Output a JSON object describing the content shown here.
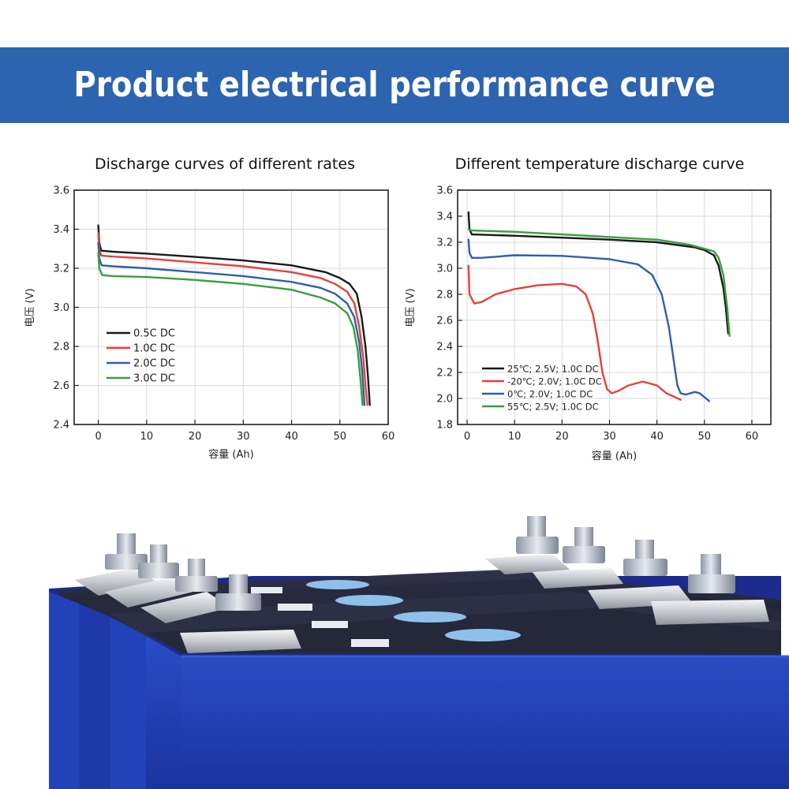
{
  "banner": {
    "title": "Product electrical performance curve"
  },
  "colors": {
    "banner": "#2d64b0",
    "black": "#1a1a1a",
    "red": "#e8403a",
    "blue": "#2f5fa8",
    "green": "#38a03c",
    "cell_blue": "#1f3fb0"
  },
  "chart_data": [
    {
      "type": "line",
      "title": "Discharge curves of different rates",
      "xlabel": "容量 (Ah)",
      "ylabel": "电压 (V)",
      "xlim": [
        -5,
        60
      ],
      "ylim": [
        2.4,
        3.6
      ],
      "xticks": [
        0,
        10,
        20,
        30,
        40,
        50,
        60
      ],
      "xtick_labels": [
        "0",
        "10",
        "20",
        "30",
        "40",
        "50",
        "60"
      ],
      "yticks": [
        2.4,
        2.6,
        2.8,
        3.0,
        3.2,
        3.4,
        3.6
      ],
      "ytick_labels": [
        "2.4",
        "2.6",
        "2.8",
        "3.0",
        "3.2",
        "3.4",
        "3.6"
      ],
      "grid": true,
      "legend": "lower-left",
      "series": [
        {
          "name": "0.5C DC",
          "color": "#1a1a1a",
          "points": [
            [
              0,
              3.42
            ],
            [
              0.2,
              3.33
            ],
            [
              0.6,
              3.29
            ],
            [
              3,
              3.285
            ],
            [
              10,
              3.275
            ],
            [
              20,
              3.258
            ],
            [
              30,
              3.24
            ],
            [
              40,
              3.215
            ],
            [
              47,
              3.18
            ],
            [
              50,
              3.15
            ],
            [
              52,
              3.12
            ],
            [
              53.5,
              3.07
            ],
            [
              54.5,
              2.95
            ],
            [
              55.3,
              2.8
            ],
            [
              55.8,
              2.65
            ],
            [
              56.2,
              2.5
            ]
          ]
        },
        {
          "name": "1.0C DC",
          "color": "#e8403a",
          "points": [
            [
              0,
              3.38
            ],
            [
              0.2,
              3.3
            ],
            [
              0.6,
              3.265
            ],
            [
              3,
              3.26
            ],
            [
              10,
              3.25
            ],
            [
              20,
              3.23
            ],
            [
              30,
              3.21
            ],
            [
              40,
              3.18
            ],
            [
              46,
              3.15
            ],
            [
              49,
              3.12
            ],
            [
              51.5,
              3.08
            ],
            [
              53,
              3.02
            ],
            [
              54,
              2.9
            ],
            [
              54.8,
              2.75
            ],
            [
              55.3,
              2.6
            ],
            [
              55.7,
              2.5
            ]
          ]
        },
        {
          "name": "2.0C DC",
          "color": "#2f5fa8",
          "points": [
            [
              0,
              3.33
            ],
            [
              0.2,
              3.25
            ],
            [
              0.7,
              3.215
            ],
            [
              3,
              3.21
            ],
            [
              10,
              3.2
            ],
            [
              20,
              3.18
            ],
            [
              30,
              3.16
            ],
            [
              40,
              3.13
            ],
            [
              46,
              3.1
            ],
            [
              49,
              3.07
            ],
            [
              51.5,
              3.02
            ],
            [
              53,
              2.95
            ],
            [
              54,
              2.82
            ],
            [
              54.6,
              2.68
            ],
            [
              55.1,
              2.5
            ]
          ]
        },
        {
          "name": "3.0C DC",
          "color": "#38a03c",
          "points": [
            [
              0,
              3.28
            ],
            [
              0.2,
              3.2
            ],
            [
              0.8,
              3.165
            ],
            [
              3,
              3.16
            ],
            [
              10,
              3.155
            ],
            [
              20,
              3.14
            ],
            [
              30,
              3.12
            ],
            [
              40,
              3.09
            ],
            [
              46,
              3.05
            ],
            [
              49,
              3.02
            ],
            [
              51.5,
              2.97
            ],
            [
              52.8,
              2.9
            ],
            [
              53.7,
              2.78
            ],
            [
              54.3,
              2.62
            ],
            [
              54.7,
              2.5
            ]
          ]
        }
      ]
    },
    {
      "type": "line",
      "title": "Different temperature discharge curve",
      "xlabel": "容量 (Ah)",
      "ylabel": "电压 (V)",
      "xlim": [
        -2,
        64
      ],
      "ylim": [
        1.8,
        3.6
      ],
      "xticks": [
        0,
        10,
        20,
        30,
        40,
        50,
        60
      ],
      "xtick_labels": [
        "0",
        "10",
        "20",
        "30",
        "40",
        "50",
        "60"
      ],
      "yticks": [
        1.8,
        2.0,
        2.2,
        2.4,
        2.6,
        2.8,
        3.0,
        3.2,
        3.4,
        3.6
      ],
      "ytick_labels": [
        "1.8",
        "2.0",
        "2.2",
        "2.4",
        "2.6",
        "2.8",
        "3.0",
        "3.2",
        "3.4",
        "3.6"
      ],
      "grid": true,
      "legend": "lower-left",
      "series": [
        {
          "name": "25℃; 2.5V; 1.0C DC",
          "color": "#1a1a1a",
          "points": [
            [
              0.3,
              3.43
            ],
            [
              0.5,
              3.3
            ],
            [
              1,
              3.26
            ],
            [
              10,
              3.25
            ],
            [
              20,
              3.235
            ],
            [
              30,
              3.22
            ],
            [
              40,
              3.2
            ],
            [
              48,
              3.16
            ],
            [
              50,
              3.14
            ],
            [
              52,
              3.1
            ],
            [
              53,
              3.02
            ],
            [
              54,
              2.85
            ],
            [
              54.5,
              2.7
            ],
            [
              55,
              2.5
            ]
          ]
        },
        {
          "name": "-20℃; 2.0V; 1.0C DC",
          "color": "#e8403a",
          "points": [
            [
              0.3,
              3.02
            ],
            [
              0.5,
              2.8
            ],
            [
              1.5,
              2.73
            ],
            [
              3,
              2.74
            ],
            [
              6,
              2.8
            ],
            [
              10,
              2.84
            ],
            [
              15,
              2.87
            ],
            [
              20,
              2.88
            ],
            [
              23,
              2.86
            ],
            [
              25,
              2.8
            ],
            [
              26.5,
              2.65
            ],
            [
              27.5,
              2.45
            ],
            [
              28.5,
              2.2
            ],
            [
              29.5,
              2.07
            ],
            [
              30.5,
              2.04
            ],
            [
              32,
              2.06
            ],
            [
              34,
              2.1
            ],
            [
              37,
              2.13
            ],
            [
              40,
              2.1
            ],
            [
              42,
              2.04
            ],
            [
              45,
              1.99
            ]
          ]
        },
        {
          "name": "0℃; 2.0V; 1.0C DC",
          "color": "#2f5fa8",
          "points": [
            [
              0.3,
              3.22
            ],
            [
              0.5,
              3.12
            ],
            [
              1,
              3.08
            ],
            [
              3,
              3.08
            ],
            [
              10,
              3.1
            ],
            [
              20,
              3.095
            ],
            [
              30,
              3.07
            ],
            [
              36,
              3.03
            ],
            [
              39,
              2.95
            ],
            [
              41,
              2.8
            ],
            [
              42.5,
              2.55
            ],
            [
              43.5,
              2.3
            ],
            [
              44.3,
              2.1
            ],
            [
              45,
              2.04
            ],
            [
              46,
              2.03
            ],
            [
              48,
              2.05
            ],
            [
              49,
              2.04
            ],
            [
              51,
              1.98
            ]
          ]
        },
        {
          "name": "55℃; 2.5V; 1.0C DC",
          "color": "#38a03c",
          "points": [
            [
              0.3,
              3.3
            ],
            [
              1,
              3.29
            ],
            [
              10,
              3.28
            ],
            [
              20,
              3.26
            ],
            [
              30,
              3.24
            ],
            [
              40,
              3.22
            ],
            [
              47,
              3.18
            ],
            [
              50,
              3.15
            ],
            [
              52,
              3.13
            ],
            [
              53,
              3.08
            ],
            [
              54,
              2.95
            ],
            [
              54.8,
              2.7
            ],
            [
              55.3,
              2.48
            ]
          ]
        }
      ]
    }
  ]
}
